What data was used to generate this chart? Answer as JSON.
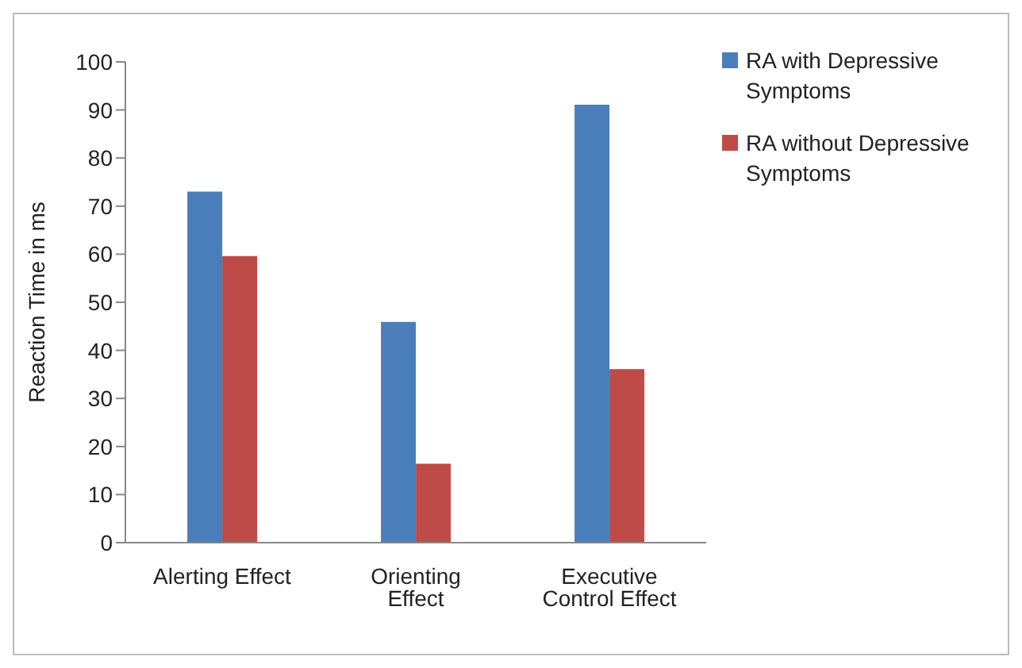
{
  "chart_data": {
    "type": "bar",
    "ylabel": "Reaction Time in ms",
    "categories": [
      "Alerting Effect",
      "Orienting Effect",
      "Executive Control Effect"
    ],
    "series": [
      {
        "name": "RA with Depressive Symptoms",
        "color": "#4a7ebb",
        "values": [
          73,
          45.9,
          91.1
        ]
      },
      {
        "name": "RA without Depressive Symptoms",
        "color": "#be4b48",
        "values": [
          59.6,
          16.4,
          36.1
        ]
      }
    ],
    "ylim": [
      0,
      100
    ],
    "yticks": [
      0,
      10,
      20,
      30,
      40,
      50,
      60,
      70,
      80,
      90,
      100
    ],
    "grid": false,
    "legend": "right"
  }
}
